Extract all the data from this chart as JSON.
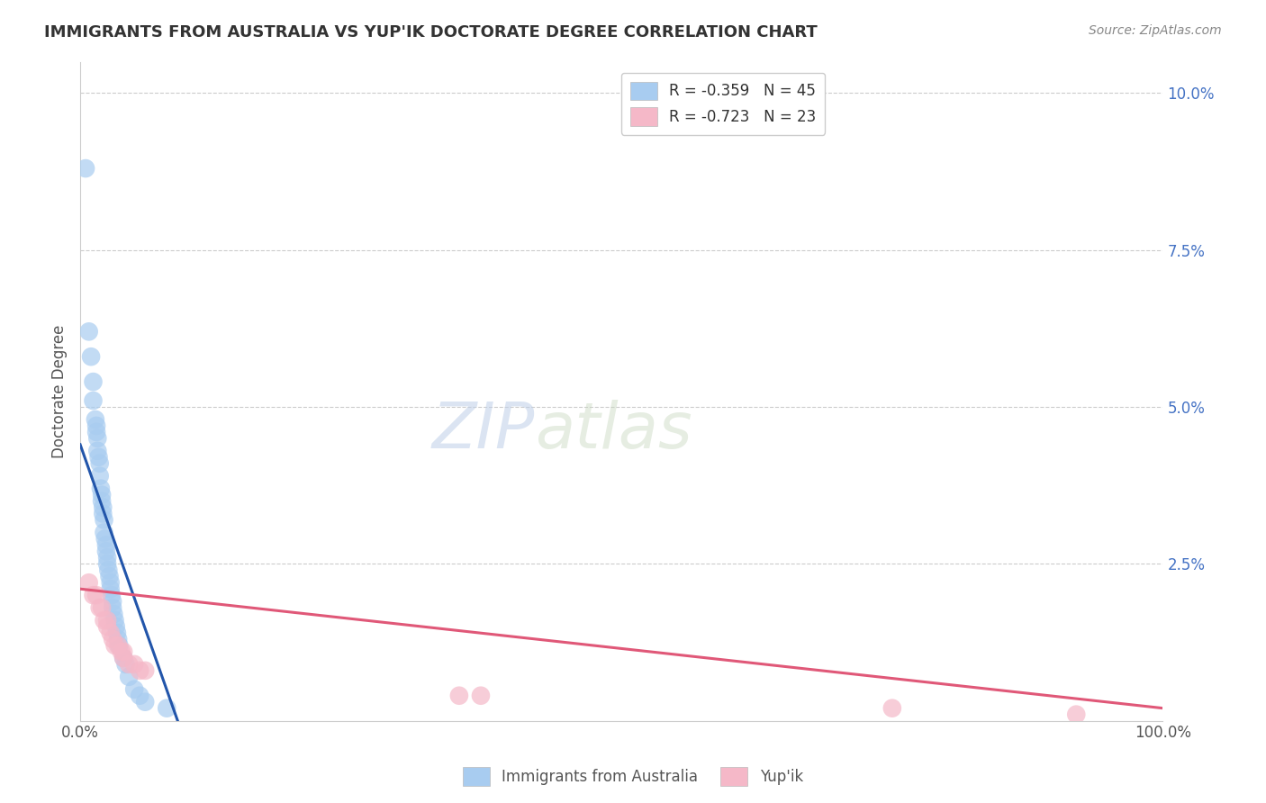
{
  "title": "IMMIGRANTS FROM AUSTRALIA VS YUP'IK DOCTORATE DEGREE CORRELATION CHART",
  "source": "Source: ZipAtlas.com",
  "ylabel": "Doctorate Degree",
  "watermark_zip": "ZIP",
  "watermark_atlas": "atlas",
  "legend_blue_r": "R = -0.359",
  "legend_blue_n": "N = 45",
  "legend_pink_r": "R = -0.723",
  "legend_pink_n": "N = 23",
  "xlim": [
    0.0,
    1.0
  ],
  "ylim": [
    0.0,
    0.105
  ],
  "yticks": [
    0.025,
    0.05,
    0.075,
    0.1
  ],
  "ytick_labels": [
    "2.5%",
    "5.0%",
    "7.5%",
    "10.0%"
  ],
  "xtick_positions": [
    0.0,
    1.0
  ],
  "xtick_labels": [
    "0.0%",
    "100.0%"
  ],
  "blue_dot_color": "#A8CCF0",
  "pink_dot_color": "#F5B8C8",
  "blue_line_color": "#2255AA",
  "pink_line_color": "#E05878",
  "right_label_color": "#4472C4",
  "background_color": "#FFFFFF",
  "grid_color": "#CCCCCC",
  "title_color": "#333333",
  "blue_scatter_x": [
    0.005,
    0.008,
    0.01,
    0.012,
    0.012,
    0.014,
    0.015,
    0.015,
    0.016,
    0.016,
    0.017,
    0.018,
    0.018,
    0.019,
    0.02,
    0.02,
    0.021,
    0.021,
    0.022,
    0.022,
    0.023,
    0.024,
    0.024,
    0.025,
    0.025,
    0.026,
    0.027,
    0.028,
    0.028,
    0.029,
    0.03,
    0.03,
    0.031,
    0.032,
    0.033,
    0.034,
    0.035,
    0.036,
    0.04,
    0.042,
    0.045,
    0.05,
    0.055,
    0.06,
    0.08
  ],
  "blue_scatter_y": [
    0.088,
    0.062,
    0.058,
    0.054,
    0.051,
    0.048,
    0.047,
    0.046,
    0.045,
    0.043,
    0.042,
    0.041,
    0.039,
    0.037,
    0.036,
    0.035,
    0.034,
    0.033,
    0.032,
    0.03,
    0.029,
    0.028,
    0.027,
    0.026,
    0.025,
    0.024,
    0.023,
    0.022,
    0.021,
    0.02,
    0.019,
    0.018,
    0.017,
    0.016,
    0.015,
    0.014,
    0.013,
    0.012,
    0.01,
    0.009,
    0.007,
    0.005,
    0.004,
    0.003,
    0.002
  ],
  "pink_scatter_x": [
    0.008,
    0.012,
    0.015,
    0.018,
    0.02,
    0.022,
    0.025,
    0.025,
    0.028,
    0.03,
    0.032,
    0.035,
    0.038,
    0.04,
    0.04,
    0.045,
    0.05,
    0.055,
    0.06,
    0.35,
    0.37,
    0.75,
    0.92
  ],
  "pink_scatter_y": [
    0.022,
    0.02,
    0.02,
    0.018,
    0.018,
    0.016,
    0.016,
    0.015,
    0.014,
    0.013,
    0.012,
    0.012,
    0.011,
    0.011,
    0.01,
    0.009,
    0.009,
    0.008,
    0.008,
    0.004,
    0.004,
    0.002,
    0.001
  ],
  "blue_line_x": [
    0.0,
    0.09
  ],
  "blue_line_y": [
    0.044,
    0.0
  ],
  "pink_line_x": [
    0.0,
    1.0
  ],
  "pink_line_y": [
    0.021,
    0.002
  ]
}
